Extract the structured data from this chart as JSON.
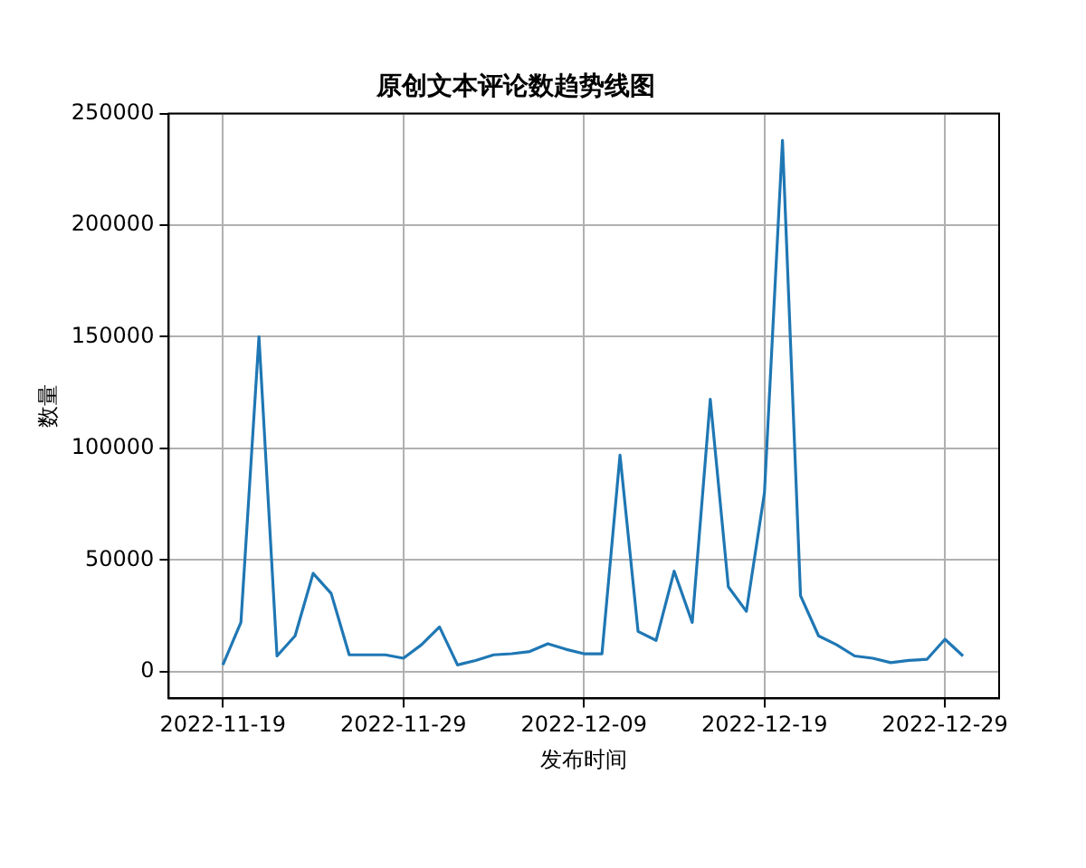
{
  "chart_data": {
    "type": "line",
    "title": "原创文本评论数趋势线图",
    "xlabel": "发布时间",
    "ylabel": "数量",
    "x": [
      "2022-11-19",
      "2022-11-20",
      "2022-11-21",
      "2022-11-22",
      "2022-11-23",
      "2022-11-24",
      "2022-11-25",
      "2022-11-26",
      "2022-11-27",
      "2022-11-28",
      "2022-11-29",
      "2022-11-30",
      "2022-12-01",
      "2022-12-02",
      "2022-12-03",
      "2022-12-04",
      "2022-12-05",
      "2022-12-06",
      "2022-12-07",
      "2022-12-08",
      "2022-12-09",
      "2022-12-10",
      "2022-12-11",
      "2022-12-12",
      "2022-12-13",
      "2022-12-14",
      "2022-12-15",
      "2022-12-16",
      "2022-12-17",
      "2022-12-18",
      "2022-12-19",
      "2022-12-20",
      "2022-12-21",
      "2022-12-22",
      "2022-12-23",
      "2022-12-24",
      "2022-12-25",
      "2022-12-26",
      "2022-12-27",
      "2022-12-28",
      "2022-12-29",
      "2022-12-30"
    ],
    "series": [
      {
        "color": "#1f77b4",
        "values": [
          3000,
          22000,
          150000,
          7000,
          16000,
          44000,
          35000,
          7500,
          7500,
          7500,
          6000,
          12000,
          20000,
          3000,
          5000,
          7500,
          8000,
          9000,
          12500,
          10000,
          8000,
          8000,
          97000,
          18000,
          14000,
          45000,
          22000,
          122000,
          38000,
          27000,
          80000,
          238000,
          34000,
          16000,
          12000,
          7000,
          6000,
          4000,
          5000,
          5500,
          14500,
          7000
        ]
      }
    ],
    "xlim": [
      "2022-11-16",
      "2023-01-01"
    ],
    "xticks": [
      "2022-11-19",
      "2022-11-29",
      "2022-12-09",
      "2022-12-19",
      "2022-12-29"
    ],
    "ylim": [
      -12000,
      250000
    ],
    "yticks": [
      0,
      50000,
      100000,
      150000,
      200000,
      250000
    ],
    "grid": true,
    "legend": false,
    "marker": "none",
    "line_style": "solid"
  }
}
